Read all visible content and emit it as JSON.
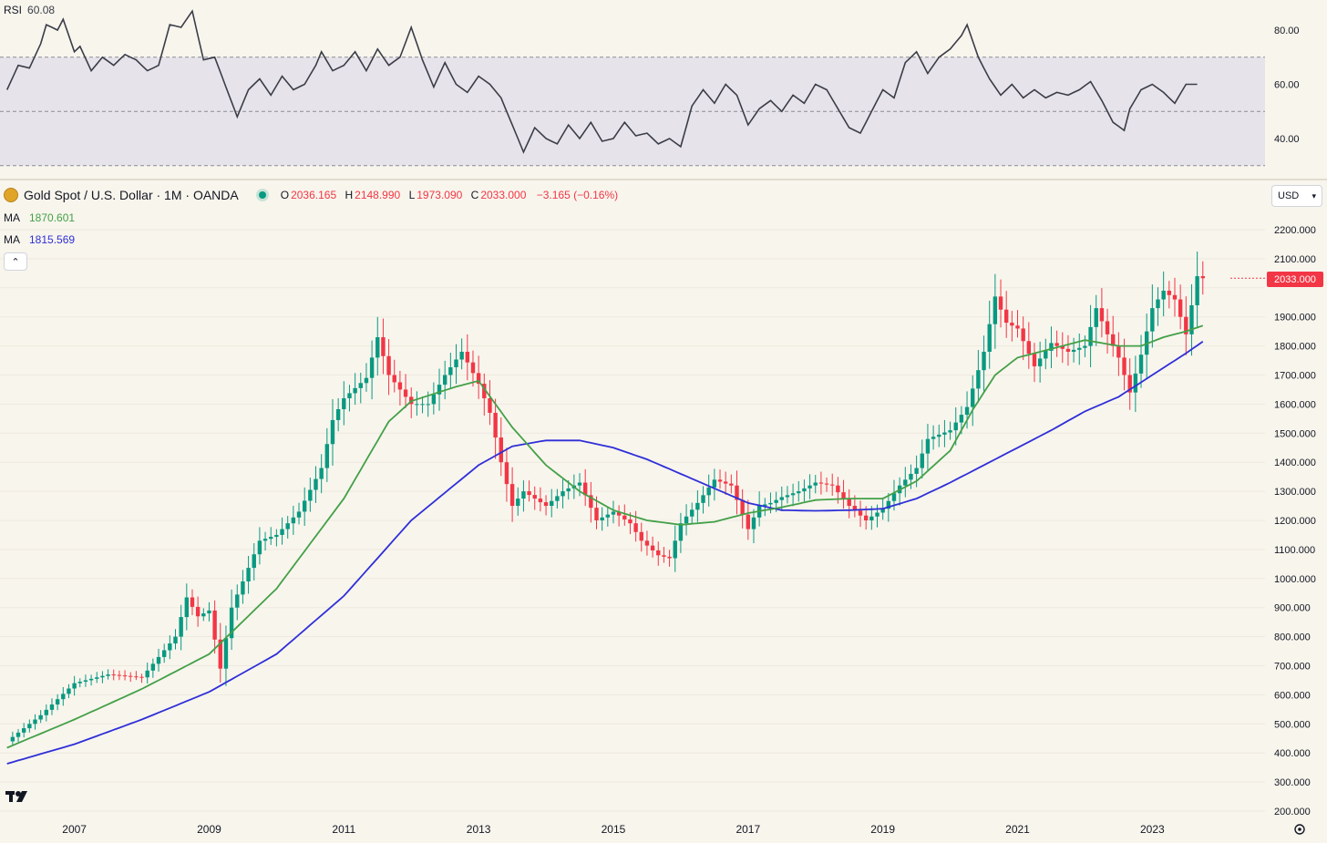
{
  "rsi": {
    "label": "RSI",
    "value": "60.08",
    "ticks": [
      "80.00",
      "60.00",
      "40.00"
    ],
    "tick_values": [
      80,
      60,
      40
    ],
    "band_upper": 70,
    "band_lower": 30,
    "mid": 50,
    "line_color": "#3a3d48",
    "band_fill": "#e7e3ea"
  },
  "symbol": {
    "title": "Gold Spot / U.S. Dollar · 1M · OANDA",
    "o_label": "O",
    "o": "2036.165",
    "h_label": "H",
    "h": "2148.990",
    "l_label": "L",
    "l": "1973.090",
    "c_label": "C",
    "c": "2033.000",
    "change": "−3.165 (−0.16%)",
    "last_price": "2033.000"
  },
  "ma1": {
    "label": "MA",
    "value": "1870.601",
    "color": "#43a047"
  },
  "ma2": {
    "label": "MA",
    "value": "1815.569",
    "color": "#2f2fd8"
  },
  "currency": "USD",
  "colors": {
    "up": "#089981",
    "down": "#f23645",
    "background": "#f8f5ed"
  },
  "chart_data": {
    "type": "candlestick",
    "frequency": "monthly",
    "price_ticks": [
      "2200.000",
      "2100.000",
      "2000.000",
      "1900.000",
      "1800.000",
      "1700.000",
      "1600.000",
      "1500.000",
      "1400.000",
      "1300.000",
      "1200.000",
      "1100.000",
      "1000.000",
      "900.000",
      "800.000",
      "700.000",
      "600.000",
      "500.000",
      "400.000",
      "300.000",
      "200.000"
    ],
    "price_tick_values": [
      2200,
      2100,
      2000,
      1900,
      1800,
      1700,
      1600,
      1500,
      1400,
      1300,
      1200,
      1100,
      1000,
      900,
      800,
      700,
      600,
      500,
      400,
      300,
      200
    ],
    "year_labels": [
      "2007",
      "2009",
      "2011",
      "2013",
      "2015",
      "2017",
      "2019",
      "2021",
      "2023"
    ],
    "year_anchor_index": [
      12,
      36,
      60,
      84,
      108,
      132,
      156,
      180,
      204
    ],
    "close_anchors": [
      [
        0,
        440
      ],
      [
        6,
        530
      ],
      [
        12,
        640
      ],
      [
        18,
        670
      ],
      [
        24,
        660
      ],
      [
        30,
        800
      ],
      [
        32,
        935
      ],
      [
        34,
        870
      ],
      [
        36,
        890
      ],
      [
        38,
        690
      ],
      [
        40,
        900
      ],
      [
        42,
        990
      ],
      [
        45,
        1130
      ],
      [
        48,
        1150
      ],
      [
        52,
        1230
      ],
      [
        56,
        1380
      ],
      [
        58,
        1545
      ],
      [
        60,
        1620
      ],
      [
        64,
        1690
      ],
      [
        66,
        1830
      ],
      [
        68,
        1700
      ],
      [
        72,
        1600
      ],
      [
        75,
        1600
      ],
      [
        78,
        1700
      ],
      [
        81,
        1780
      ],
      [
        84,
        1670
      ],
      [
        86,
        1570
      ],
      [
        88,
        1400
      ],
      [
        90,
        1250
      ],
      [
        92,
        1300
      ],
      [
        96,
        1250
      ],
      [
        99,
        1300
      ],
      [
        102,
        1330
      ],
      [
        105,
        1200
      ],
      [
        108,
        1230
      ],
      [
        111,
        1190
      ],
      [
        113,
        1130
      ],
      [
        116,
        1080
      ],
      [
        118,
        1070
      ],
      [
        120,
        1190
      ],
      [
        123,
        1260
      ],
      [
        126,
        1340
      ],
      [
        129,
        1320
      ],
      [
        132,
        1170
      ],
      [
        134,
        1250
      ],
      [
        136,
        1260
      ],
      [
        138,
        1280
      ],
      [
        141,
        1300
      ],
      [
        144,
        1330
      ],
      [
        147,
        1320
      ],
      [
        150,
        1250
      ],
      [
        153,
        1200
      ],
      [
        156,
        1240
      ],
      [
        159,
        1320
      ],
      [
        162,
        1380
      ],
      [
        164,
        1480
      ],
      [
        168,
        1510
      ],
      [
        171,
        1590
      ],
      [
        174,
        1780
      ],
      [
        176,
        1970
      ],
      [
        178,
        1880
      ],
      [
        180,
        1860
      ],
      [
        183,
        1730
      ],
      [
        186,
        1810
      ],
      [
        189,
        1780
      ],
      [
        192,
        1800
      ],
      [
        194,
        1930
      ],
      [
        196,
        1840
      ],
      [
        198,
        1760
      ],
      [
        200,
        1640
      ],
      [
        202,
        1770
      ],
      [
        204,
        1930
      ],
      [
        206,
        1990
      ],
      [
        208,
        1960
      ],
      [
        210,
        1840
      ],
      [
        212,
        2040
      ],
      [
        213,
        2033
      ]
    ],
    "rsi_anchors": [
      [
        0,
        58
      ],
      [
        2,
        67
      ],
      [
        4,
        66
      ],
      [
        6,
        75
      ],
      [
        7,
        82
      ],
      [
        9,
        80
      ],
      [
        10,
        84
      ],
      [
        12,
        72
      ],
      [
        13,
        74
      ],
      [
        15,
        65
      ],
      [
        17,
        70
      ],
      [
        19,
        67
      ],
      [
        21,
        71
      ],
      [
        23,
        69
      ],
      [
        25,
        65
      ],
      [
        27,
        67
      ],
      [
        29,
        82
      ],
      [
        31,
        81
      ],
      [
        33,
        87
      ],
      [
        35,
        69
      ],
      [
        37,
        70
      ],
      [
        39,
        59
      ],
      [
        41,
        48
      ],
      [
        43,
        58
      ],
      [
        45,
        62
      ],
      [
        47,
        56
      ],
      [
        49,
        63
      ],
      [
        51,
        58
      ],
      [
        53,
        60
      ],
      [
        55,
        67
      ],
      [
        56,
        72
      ],
      [
        58,
        65
      ],
      [
        60,
        67
      ],
      [
        62,
        72
      ],
      [
        64,
        65
      ],
      [
        66,
        73
      ],
      [
        68,
        67
      ],
      [
        70,
        70
      ],
      [
        72,
        81
      ],
      [
        74,
        69
      ],
      [
        76,
        59
      ],
      [
        78,
        68
      ],
      [
        80,
        60
      ],
      [
        82,
        57
      ],
      [
        84,
        63
      ],
      [
        86,
        60
      ],
      [
        88,
        55
      ],
      [
        90,
        45
      ],
      [
        92,
        35
      ],
      [
        94,
        44
      ],
      [
        96,
        40
      ],
      [
        98,
        38
      ],
      [
        100,
        45
      ],
      [
        102,
        40
      ],
      [
        104,
        46
      ],
      [
        106,
        39
      ],
      [
        108,
        40
      ],
      [
        110,
        46
      ],
      [
        112,
        41
      ],
      [
        114,
        42
      ],
      [
        116,
        38
      ],
      [
        118,
        40
      ],
      [
        120,
        37
      ],
      [
        122,
        52
      ],
      [
        124,
        58
      ],
      [
        126,
        53
      ],
      [
        128,
        60
      ],
      [
        130,
        56
      ],
      [
        132,
        45
      ],
      [
        134,
        51
      ],
      [
        136,
        54
      ],
      [
        138,
        50
      ],
      [
        140,
        56
      ],
      [
        142,
        53
      ],
      [
        144,
        60
      ],
      [
        146,
        58
      ],
      [
        148,
        51
      ],
      [
        150,
        44
      ],
      [
        152,
        42
      ],
      [
        154,
        50
      ],
      [
        156,
        58
      ],
      [
        158,
        55
      ],
      [
        160,
        68
      ],
      [
        162,
        72
      ],
      [
        164,
        64
      ],
      [
        166,
        70
      ],
      [
        168,
        73
      ],
      [
        170,
        78
      ],
      [
        171,
        82
      ],
      [
        173,
        70
      ],
      [
        175,
        62
      ],
      [
        177,
        56
      ],
      [
        179,
        60
      ],
      [
        181,
        55
      ],
      [
        183,
        58
      ],
      [
        185,
        55
      ],
      [
        187,
        57
      ],
      [
        189,
        56
      ],
      [
        191,
        58
      ],
      [
        193,
        61
      ],
      [
        195,
        54
      ],
      [
        197,
        46
      ],
      [
        199,
        43
      ],
      [
        200,
        51
      ],
      [
        202,
        58
      ],
      [
        204,
        60
      ],
      [
        206,
        57
      ],
      [
        208,
        53
      ],
      [
        210,
        60
      ],
      [
        212,
        60
      ]
    ],
    "ma1_anchors": [
      [
        0,
        418
      ],
      [
        12,
        515
      ],
      [
        24,
        620
      ],
      [
        36,
        740
      ],
      [
        48,
        965
      ],
      [
        60,
        1275
      ],
      [
        68,
        1540
      ],
      [
        72,
        1610
      ],
      [
        80,
        1660
      ],
      [
        84,
        1680
      ],
      [
        90,
        1520
      ],
      [
        96,
        1390
      ],
      [
        102,
        1300
      ],
      [
        108,
        1235
      ],
      [
        114,
        1200
      ],
      [
        120,
        1185
      ],
      [
        126,
        1195
      ],
      [
        132,
        1225
      ],
      [
        138,
        1245
      ],
      [
        144,
        1270
      ],
      [
        150,
        1275
      ],
      [
        156,
        1275
      ],
      [
        162,
        1335
      ],
      [
        168,
        1440
      ],
      [
        172,
        1580
      ],
      [
        176,
        1700
      ],
      [
        180,
        1760
      ],
      [
        186,
        1790
      ],
      [
        192,
        1820
      ],
      [
        198,
        1800
      ],
      [
        202,
        1800
      ],
      [
        206,
        1830
      ],
      [
        210,
        1850
      ],
      [
        213,
        1870
      ]
    ],
    "ma2_anchors": [
      [
        0,
        363
      ],
      [
        12,
        430
      ],
      [
        24,
        515
      ],
      [
        36,
        610
      ],
      [
        48,
        740
      ],
      [
        60,
        940
      ],
      [
        72,
        1200
      ],
      [
        84,
        1390
      ],
      [
        90,
        1455
      ],
      [
        96,
        1475
      ],
      [
        102,
        1475
      ],
      [
        108,
        1450
      ],
      [
        114,
        1410
      ],
      [
        120,
        1360
      ],
      [
        126,
        1310
      ],
      [
        132,
        1260
      ],
      [
        138,
        1235
      ],
      [
        144,
        1233
      ],
      [
        150,
        1235
      ],
      [
        156,
        1240
      ],
      [
        162,
        1275
      ],
      [
        168,
        1330
      ],
      [
        174,
        1390
      ],
      [
        180,
        1450
      ],
      [
        186,
        1510
      ],
      [
        192,
        1575
      ],
      [
        198,
        1625
      ],
      [
        204,
        1700
      ],
      [
        210,
        1775
      ],
      [
        213,
        1815
      ]
    ]
  }
}
